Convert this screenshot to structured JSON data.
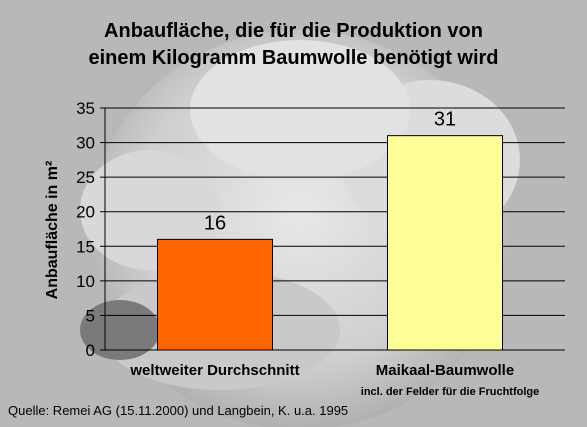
{
  "chart_data": {
    "type": "bar",
    "title_lines": [
      "Anbaufläche, die für die Produktion von",
      "einem Kilogramm Baumwolle benötigt wird"
    ],
    "ylabel": "Anbaufläche in m²",
    "xlabel": "",
    "categories": [
      "weltweiter Durchschnitt",
      "Maikaal-Baumwolle"
    ],
    "category_notes": [
      "",
      "incl. der Felder für die Fruchtfolge"
    ],
    "values": [
      16,
      31
    ],
    "data_labels": [
      "16",
      "31"
    ],
    "bar_colors": [
      "#ff6600",
      "#ffff99"
    ],
    "ylim": [
      0,
      35
    ],
    "yticks": [
      0,
      5,
      10,
      15,
      20,
      25,
      30,
      35
    ],
    "grid": true
  },
  "source": "Quelle: Remei AG (15.11.2000) und Langbein, K. u.a. 1995"
}
